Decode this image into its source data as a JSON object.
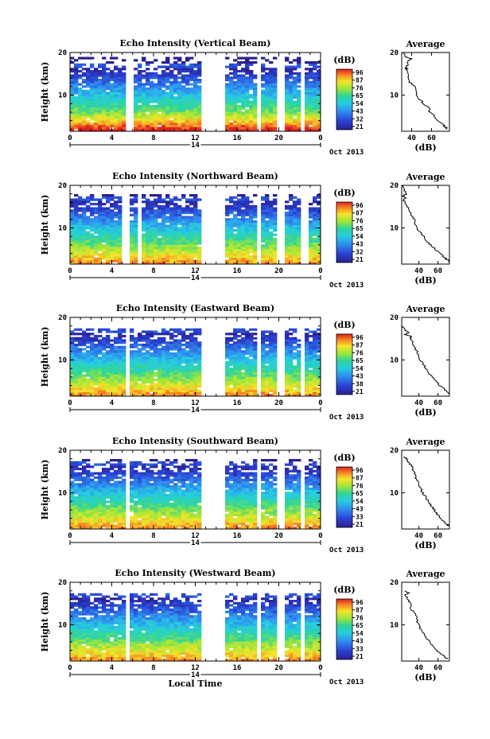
{
  "chart_data": [
    {
      "type": "heatmap",
      "title": "Echo Intensity (Vertical Beam)",
      "ylabel": "Height (km)",
      "x_ticks": [
        "0",
        "4",
        "8",
        "12",
        "16",
        "20",
        "0"
      ],
      "y_ticks": [
        "20",
        "10"
      ],
      "day_label": "14",
      "date_label": "Oct 2013",
      "xlim": [
        0,
        24
      ],
      "ylim": [
        1.5,
        20
      ],
      "data_gaps_hours": [
        [
          5.3,
          6.0
        ],
        [
          12.6,
          14.9
        ],
        [
          17.9,
          18.2
        ],
        [
          19.9,
          20.4
        ],
        [
          22.2,
          22.6
        ]
      ],
      "upper_cutoff_km": 19.2,
      "colorbar": {
        "unit": "(dB)",
        "ticks": [
          "96",
          "87",
          "76",
          "65",
          "54",
          "43",
          "32",
          "21"
        ],
        "range": [
          21,
          96
        ]
      },
      "average": {
        "title": "Average",
        "xlabel": "(dB)",
        "x_ticks": [
          "40",
          "60"
        ],
        "xlim": [
          30,
          78
        ],
        "y_ticks": [
          "20",
          "10"
        ],
        "profile": [
          [
            20,
            31
          ],
          [
            19,
            34
          ],
          [
            18.5,
            40
          ],
          [
            18,
            36
          ],
          [
            17,
            36
          ],
          [
            16.5,
            34
          ],
          [
            16,
            35
          ],
          [
            15,
            36
          ],
          [
            14,
            36
          ],
          [
            13,
            38
          ],
          [
            12,
            44
          ],
          [
            11,
            45
          ],
          [
            10,
            44
          ],
          [
            9,
            48
          ],
          [
            8,
            52
          ],
          [
            7,
            57
          ],
          [
            6,
            58
          ],
          [
            5,
            63
          ],
          [
            4,
            67
          ],
          [
            3,
            72
          ],
          [
            2.5,
            74
          ],
          [
            2,
            76
          ]
        ]
      }
    },
    {
      "type": "heatmap",
      "title": "Echo Intensity (Northward Beam)",
      "ylabel": "Height (km)",
      "x_ticks": [
        "0",
        "4",
        "8",
        "12",
        "16",
        "20",
        "0"
      ],
      "y_ticks": [
        "20",
        "10"
      ],
      "day_label": "14",
      "date_label": "Oct 2013",
      "xlim": [
        0,
        24
      ],
      "ylim": [
        1.5,
        20
      ],
      "data_gaps_hours": [
        [
          4.9,
          5.7
        ],
        [
          6.5,
          6.7
        ],
        [
          12.6,
          14.9
        ],
        [
          17.9,
          18.3
        ],
        [
          19.9,
          20.4
        ],
        [
          22.2,
          22.7
        ]
      ],
      "upper_cutoff_km": 18.0,
      "colorbar": {
        "unit": "(dB)",
        "ticks": [
          "96",
          "87",
          "76",
          "65",
          "54",
          "43",
          "32",
          "21"
        ],
        "range": [
          21,
          96
        ]
      },
      "average": {
        "title": "Average",
        "xlabel": "(dB)",
        "x_ticks": [
          "40",
          "60"
        ],
        "xlim": [
          22,
          72
        ],
        "y_ticks": [
          "20",
          "10"
        ],
        "profile": [
          [
            20,
            22
          ],
          [
            19,
            24
          ],
          [
            18,
            27
          ],
          [
            17.5,
            23
          ],
          [
            17,
            26
          ],
          [
            16.5,
            24
          ],
          [
            16,
            25
          ],
          [
            15,
            28
          ],
          [
            14,
            30
          ],
          [
            13,
            32
          ],
          [
            12,
            35
          ],
          [
            11,
            36
          ],
          [
            10,
            38
          ],
          [
            9,
            41
          ],
          [
            8,
            45
          ],
          [
            7,
            48
          ],
          [
            6,
            52
          ],
          [
            5,
            57
          ],
          [
            4,
            62
          ],
          [
            3,
            67
          ],
          [
            2.5,
            70
          ],
          [
            2,
            72
          ]
        ]
      }
    },
    {
      "type": "heatmap",
      "title": "Echo Intensity (Eastward Beam)",
      "ylabel": "Height (km)",
      "x_ticks": [
        "0",
        "4",
        "8",
        "12",
        "16",
        "20",
        "0"
      ],
      "y_ticks": [
        "20",
        "10"
      ],
      "day_label": "14",
      "date_label": "Oct 2013",
      "xlim": [
        0,
        24
      ],
      "ylim": [
        1.5,
        20
      ],
      "data_gaps_hours": [
        [
          5.3,
          5.8
        ],
        [
          12.6,
          14.9
        ],
        [
          17.9,
          18.2
        ],
        [
          19.9,
          20.4
        ],
        [
          22.2,
          22.6
        ]
      ],
      "upper_cutoff_km": 17.5,
      "colorbar": {
        "unit": "(dB)",
        "ticks": [
          "96",
          "87",
          "76",
          "65",
          "54",
          "43",
          "38",
          "21"
        ],
        "range": [
          21,
          96
        ]
      },
      "average": {
        "title": "Average",
        "xlabel": "(dB)",
        "x_ticks": [
          "40",
          "60"
        ],
        "xlim": [
          22,
          72
        ],
        "y_ticks": [
          "20",
          "10"
        ],
        "profile": [
          [
            18,
            23
          ],
          [
            17,
            26
          ],
          [
            16.5,
            30
          ],
          [
            16,
            26
          ],
          [
            15.5,
            32
          ],
          [
            15,
            31
          ],
          [
            14,
            34
          ],
          [
            13,
            35
          ],
          [
            12,
            38
          ],
          [
            11,
            40
          ],
          [
            10,
            41
          ],
          [
            9,
            45
          ],
          [
            8,
            47
          ],
          [
            7,
            50
          ],
          [
            6,
            54
          ],
          [
            5,
            58
          ],
          [
            4,
            62
          ],
          [
            3,
            67
          ],
          [
            2.5,
            70
          ],
          [
            2,
            72
          ]
        ]
      }
    },
    {
      "type": "heatmap",
      "title": "Echo Intensity (Southward Beam)",
      "ylabel": "Height (km)",
      "x_ticks": [
        "0",
        "4",
        "8",
        "12",
        "16",
        "20",
        "0"
      ],
      "y_ticks": [
        "20",
        "10"
      ],
      "day_label": "14",
      "date_label": "Oct 2013",
      "xlim": [
        0,
        24
      ],
      "ylim": [
        1.5,
        20
      ],
      "data_gaps_hours": [
        [
          5.3,
          5.8
        ],
        [
          12.6,
          14.9
        ],
        [
          17.9,
          18.3
        ],
        [
          19.9,
          20.4
        ],
        [
          22.2,
          22.6
        ]
      ],
      "upper_cutoff_km": 18.0,
      "colorbar": {
        "unit": "(dB)",
        "ticks": [
          "96",
          "87",
          "76",
          "65",
          "54",
          "43",
          "33",
          "21"
        ],
        "range": [
          21,
          96
        ]
      },
      "average": {
        "title": "Average",
        "xlabel": "(dB)",
        "x_ticks": [
          "40",
          "60"
        ],
        "xlim": [
          22,
          72
        ],
        "y_ticks": [
          "20",
          "10"
        ],
        "profile": [
          [
            18.5,
            24
          ],
          [
            18,
            27
          ],
          [
            17,
            30
          ],
          [
            16.5,
            32
          ],
          [
            16,
            33
          ],
          [
            15,
            35
          ],
          [
            14,
            36
          ],
          [
            13,
            38
          ],
          [
            12,
            40
          ],
          [
            11,
            42
          ],
          [
            10,
            44
          ],
          [
            9,
            47
          ],
          [
            8,
            50
          ],
          [
            7,
            53
          ],
          [
            6,
            56
          ],
          [
            5,
            59
          ],
          [
            4,
            63
          ],
          [
            3,
            67
          ],
          [
            2.5,
            70
          ],
          [
            2,
            72
          ]
        ]
      }
    },
    {
      "type": "heatmap",
      "title": "Echo Intensity (Westward Beam)",
      "ylabel": "Height (km)",
      "x_ticks": [
        "0",
        "4",
        "8",
        "12",
        "16",
        "20",
        "0"
      ],
      "y_ticks": [
        "20",
        "10"
      ],
      "day_label": "14",
      "date_label": "Oct 2013",
      "xlabel": "Local Time",
      "xlim": [
        0,
        24
      ],
      "ylim": [
        1.5,
        20
      ],
      "data_gaps_hours": [
        [
          5.3,
          5.8
        ],
        [
          12.6,
          14.9
        ],
        [
          17.9,
          18.3
        ],
        [
          19.9,
          20.4
        ],
        [
          22.2,
          22.6
        ]
      ],
      "upper_cutoff_km": 17.5,
      "colorbar": {
        "unit": "(dB)",
        "ticks": [
          "96",
          "87",
          "76",
          "65",
          "54",
          "43",
          "33",
          "21"
        ],
        "range": [
          21,
          96
        ]
      },
      "average": {
        "title": "Average",
        "xlabel": "(dB)",
        "x_ticks": [
          "40",
          "60"
        ],
        "xlim": [
          22,
          72
        ],
        "y_ticks": [
          "20",
          "10"
        ],
        "profile": [
          [
            18,
            25
          ],
          [
            17.5,
            29
          ],
          [
            17,
            26
          ],
          [
            16,
            28
          ],
          [
            15,
            31
          ],
          [
            14,
            31
          ],
          [
            13,
            35
          ],
          [
            12,
            37
          ],
          [
            11,
            38
          ],
          [
            10,
            40
          ],
          [
            9,
            42
          ],
          [
            8,
            45
          ],
          [
            7,
            48
          ],
          [
            6,
            51
          ],
          [
            5,
            55
          ],
          [
            4,
            59
          ],
          [
            3,
            64
          ],
          [
            2.5,
            67
          ],
          [
            2,
            70
          ]
        ]
      }
    }
  ]
}
